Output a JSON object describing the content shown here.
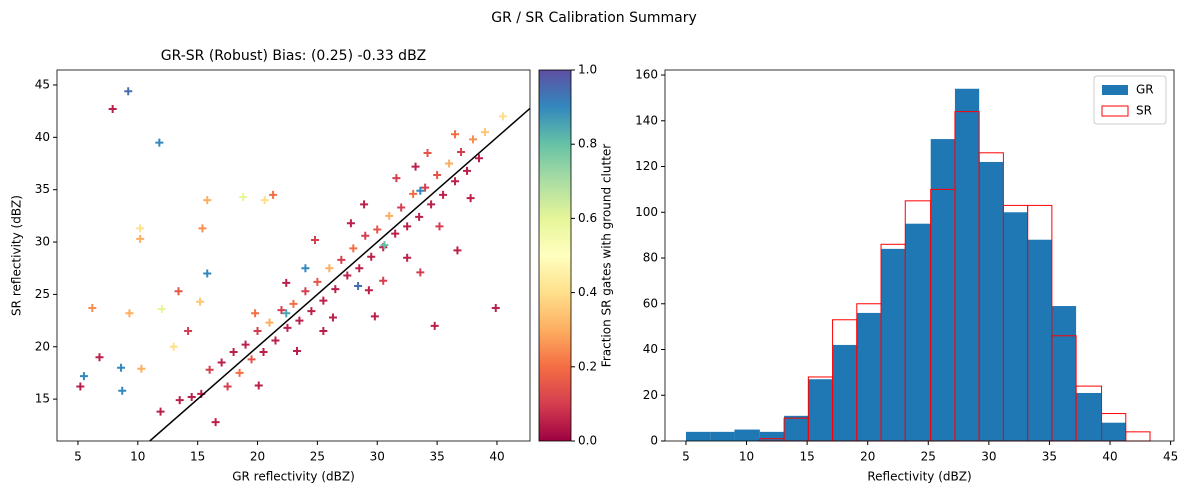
{
  "title": "GR / SR Calibration Summary",
  "chart_data": [
    {
      "type": "scatter",
      "title": "GR-SR (Robust) Bias: (0.25) -0.33 dBZ",
      "x_label": "GR reflectivity (dBZ)",
      "y_label": "SR reflectivity (dBZ)",
      "xlim": [
        3.25,
        42.76
      ],
      "ylim": [
        11.0,
        46.43
      ],
      "xticks": [
        5,
        10,
        15,
        20,
        25,
        30,
        35,
        40
      ],
      "yticks": [
        15,
        20,
        25,
        30,
        35,
        40,
        45
      ],
      "one_to_one_line": true,
      "line_color": "#000000",
      "colorbar": {
        "colormap": "Spectral",
        "lim": [
          0,
          1
        ],
        "label": "Fraction SR gates with ground clutter",
        "ticks": [
          {
            "value": 0,
            "label": "0.0"
          },
          {
            "value": 0.2,
            "label": "0.2"
          },
          {
            "value": 0.4,
            "label": "0.4"
          },
          {
            "value": 0.6,
            "label": "0.6"
          },
          {
            "value": 0.8,
            "label": "0.8"
          },
          {
            "value": 1,
            "label": "1.0"
          }
        ]
      },
      "x": [
        9.2,
        7.9,
        11.8,
        6.2,
        5.2,
        5.5,
        6.8,
        8.6,
        8.7,
        9.3,
        10.2,
        10.2,
        10.3,
        11.9,
        12.0,
        13.0,
        13.4,
        14.2,
        15.2,
        15.8,
        15.8,
        15.4,
        16.5,
        18.8,
        20.6,
        21.3,
        34.8,
        39.9,
        36.7,
        29.8,
        33.6,
        17,
        17.5,
        18,
        18.5,
        19,
        19.5,
        20,
        20.5,
        21,
        21.5,
        22,
        22.5,
        23,
        23.5,
        24,
        24.5,
        25,
        25.5,
        26,
        26.5,
        27,
        27.5,
        28,
        28.5,
        29,
        29.5,
        30,
        30.5,
        31,
        31.5,
        32,
        32.5,
        33,
        33.5,
        34,
        34.5,
        35,
        35.5,
        36,
        36.5,
        37,
        37.5,
        38,
        38.5,
        39,
        40.5,
        15.3,
        16,
        14.5,
        13.5,
        22.4,
        25.5,
        27.8,
        30.5,
        33.2,
        35.2,
        19.8,
        24.8,
        28.9,
        31.6,
        26.3,
        32.5,
        20.1,
        23.3,
        37.8,
        29.3,
        36.5,
        34.2,
        24.0,
        28.4,
        33.6,
        22.4,
        30.6
      ],
      "values": [
        44.4,
        42.7,
        39.5,
        23.7,
        16.2,
        17.2,
        19.0,
        18.0,
        15.8,
        23.2,
        30.3,
        31.3,
        17.9,
        13.8,
        23.6,
        20.0,
        25.3,
        21.5,
        24.3,
        27.0,
        34.0,
        31.3,
        12.8,
        34.3,
        34.0,
        34.5,
        22.0,
        23.7,
        29.2,
        22.9,
        27.1,
        18.5,
        16.2,
        19.5,
        17.5,
        20.2,
        18.8,
        21.5,
        19.5,
        22.3,
        20.6,
        23.5,
        21.8,
        24.1,
        22.5,
        25.3,
        23.4,
        26.2,
        24.4,
        27.5,
        25.5,
        28.3,
        26.8,
        29.4,
        27.5,
        30.6,
        28.6,
        31.2,
        29.5,
        32.5,
        30.8,
        33.3,
        31.5,
        34.6,
        32.4,
        35.2,
        33.6,
        36.4,
        34.5,
        37.5,
        35.8,
        38.6,
        36.8,
        39.8,
        38.0,
        40.5,
        42.0,
        15.5,
        17.8,
        15.2,
        14.9,
        26.1,
        21.5,
        31.8,
        26.3,
        37.2,
        31.5,
        23.2,
        30.2,
        33.6,
        36.1,
        22.8,
        28.5,
        16.3,
        19.6,
        34.2,
        25.4,
        40.3,
        38.5,
        27.5,
        25.8,
        34.9,
        23.2,
        29.7
      ],
      "colors": [
        0.95,
        0.05,
        0.9,
        0.25,
        0.05,
        0.9,
        0.05,
        0.9,
        0.9,
        0.3,
        0.3,
        0.4,
        0.3,
        0.05,
        0.6,
        0.4,
        0.15,
        0.1,
        0.35,
        0.9,
        0.3,
        0.25,
        0.05,
        0.6,
        0.4,
        0.2,
        0.05,
        0.05,
        0.05,
        0.05,
        0.1,
        0.05,
        0.1,
        0.05,
        0.2,
        0.05,
        0.15,
        0.1,
        0.05,
        0.3,
        0.05,
        0.1,
        0.05,
        0.2,
        0.05,
        0.1,
        0.05,
        0.15,
        0.05,
        0.3,
        0.05,
        0.1,
        0.05,
        0.2,
        0.05,
        0.1,
        0.05,
        0.15,
        0.05,
        0.3,
        0.05,
        0.1,
        0.05,
        0.2,
        0.05,
        0.1,
        0.05,
        0.15,
        0.05,
        0.3,
        0.05,
        0.1,
        0.05,
        0.25,
        0.05,
        0.35,
        0.4,
        0.05,
        0.1,
        0.05,
        0.05,
        0.05,
        0.05,
        0.05,
        0.1,
        0.05,
        0.1,
        0.2,
        0.1,
        0.05,
        0.1,
        0.05,
        0.05,
        0.05,
        0.05,
        0.05,
        0.05,
        0.2,
        0.15,
        0.9,
        0.95,
        0.9,
        0.85,
        0.8
      ]
    },
    {
      "type": "histogram",
      "x_label": "Reflectivity (dBZ)",
      "xlim": [
        3.27,
        45.28
      ],
      "ylim": [
        0,
        162.2
      ],
      "xticks": [
        5,
        10,
        15,
        20,
        25,
        30,
        35,
        40,
        45
      ],
      "yticks": [
        0,
        20,
        40,
        60,
        80,
        100,
        120,
        140,
        160
      ],
      "legend": "upper right",
      "bins": [
        5.0,
        7.0,
        9.0,
        11.1,
        13.1,
        15.1,
        17.1,
        19.1,
        21.1,
        23.1,
        25.2,
        27.2,
        29.2,
        31.2,
        33.2,
        35.2,
        37.2,
        39.3,
        41.3,
        43.3
      ],
      "series": [
        {
          "name": "GR",
          "color": "#1f77b4",
          "filled": true,
          "values": [
            4,
            4,
            5,
            4,
            11,
            27,
            42,
            56,
            84,
            95,
            132,
            154,
            122,
            100,
            88,
            59,
            21,
            8,
            0
          ]
        },
        {
          "name": "SR",
          "color": "#ff0000",
          "filled": false,
          "values": [
            0,
            0,
            0,
            1,
            10,
            28,
            53,
            60,
            86,
            105,
            110,
            144,
            126,
            103,
            103,
            46,
            24,
            12,
            4
          ]
        }
      ]
    }
  ]
}
